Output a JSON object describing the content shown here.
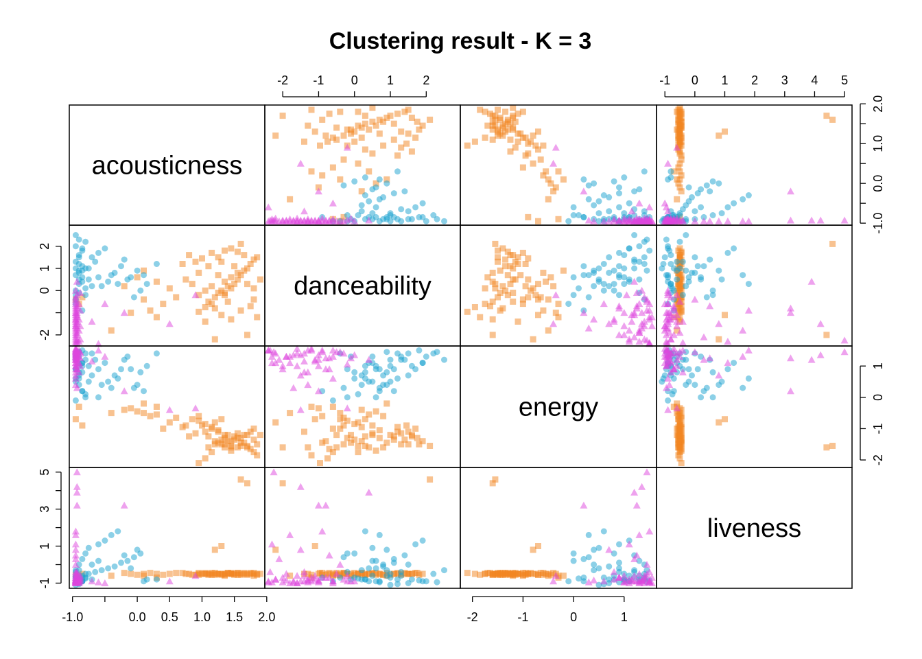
{
  "chart_data": {
    "type": "scatter",
    "title": "Clustering result - K = 3",
    "variables": [
      "acousticness",
      "danceability",
      "energy",
      "liveness"
    ],
    "cluster_colors": [
      "#F28522",
      "#1AA1CF",
      "#DE46DE"
    ],
    "cluster_markers": [
      "square",
      "circle",
      "triangle"
    ],
    "axes": {
      "acousticness": {
        "range": [
          -1.05,
          1.97
        ],
        "ticks": [
          -1.0,
          -0.5,
          0.0,
          0.5,
          1.0,
          1.5,
          2.0
        ],
        "tick_labels_bottom": [
          "-1.0",
          "",
          "0.0",
          "0.5",
          "1.0",
          "1.5",
          "2.0"
        ],
        "tick_labels_right": [
          "-1.0",
          "",
          "0.0",
          "",
          "1.0",
          "",
          "2.0"
        ]
      },
      "danceability": {
        "range": [
          -2.5,
          2.95
        ],
        "ticks": [
          -2,
          -1,
          0,
          1,
          2
        ],
        "tick_labels_top": [
          "-2",
          "-1",
          "0",
          "1",
          "2"
        ],
        "tick_labels_left": [
          "-2",
          "",
          "0",
          "1",
          "2"
        ]
      },
      "energy": {
        "range": [
          -2.24,
          1.64
        ],
        "ticks": [
          -2,
          -1,
          0,
          1
        ],
        "tick_labels_bottom": [
          "-2",
          "-1",
          "0",
          "1"
        ],
        "tick_labels_right": [
          "-2",
          "-1",
          "0",
          "1"
        ]
      },
      "liveness": {
        "range": [
          -1.28,
          5.25
        ],
        "ticks": [
          -1,
          0,
          1,
          2,
          3,
          4,
          5
        ],
        "tick_labels_top": [
          "-1",
          "0",
          "1",
          "2",
          "3",
          "4",
          "5"
        ],
        "tick_labels_left": [
          "-1",
          "",
          "1",
          "",
          "3",
          "",
          "5"
        ]
      }
    },
    "points": [
      [
        0.95,
        -0.96,
        -2.1,
        -0.45,
        0
      ],
      [
        1.05,
        -0.75,
        -1.95,
        -0.5,
        0
      ],
      [
        1.15,
        -0.6,
        -1.75,
        -0.5,
        0
      ],
      [
        1.1,
        -0.5,
        -1.6,
        -0.55,
        0
      ],
      [
        1.2,
        -0.3,
        -1.5,
        -0.45,
        0
      ],
      [
        1.25,
        -0.1,
        -1.45,
        -0.5,
        0
      ],
      [
        1.3,
        0.0,
        -1.35,
        -0.55,
        0
      ],
      [
        1.35,
        -0.2,
        -1.3,
        -0.5,
        0
      ],
      [
        1.4,
        0.2,
        -1.4,
        -0.45,
        0
      ],
      [
        1.45,
        0.1,
        -1.55,
        -0.5,
        0
      ],
      [
        1.5,
        0.3,
        -1.25,
        -0.55,
        0
      ],
      [
        1.55,
        0.5,
        -1.15,
        -0.45,
        0
      ],
      [
        1.6,
        0.7,
        -1.3,
        -0.5,
        0
      ],
      [
        1.65,
        0.9,
        -1.45,
        -0.45,
        0
      ],
      [
        1.7,
        1.0,
        -1.2,
        -0.55,
        0
      ],
      [
        1.75,
        1.2,
        -1.1,
        -0.5,
        0
      ],
      [
        1.8,
        1.4,
        -1.35,
        -0.45,
        0
      ],
      [
        1.85,
        1.5,
        -1.5,
        -0.5,
        0
      ],
      [
        1.55,
        0.8,
        -1.6,
        -0.55,
        0
      ],
      [
        1.45,
        0.6,
        -1.7,
        -0.45,
        0
      ],
      [
        1.35,
        0.4,
        -1.6,
        -0.5,
        0
      ],
      [
        1.25,
        0.7,
        -1.05,
        -0.5,
        0
      ],
      [
        1.15,
        0.2,
        -0.95,
        -0.55,
        0
      ],
      [
        1.05,
        0.0,
        -0.85,
        -0.45,
        0
      ],
      [
        0.95,
        -0.2,
        -0.75,
        -0.5,
        0
      ],
      [
        0.85,
        0.3,
        -0.7,
        -0.55,
        0
      ],
      [
        0.75,
        0.5,
        -0.9,
        -0.5,
        0
      ],
      [
        0.6,
        -0.3,
        -0.65,
        -0.45,
        0
      ],
      [
        0.5,
        0.1,
        -0.8,
        -0.5,
        0
      ],
      [
        0.4,
        -0.6,
        -1.0,
        -0.55,
        0
      ],
      [
        0.3,
        0.4,
        -0.55,
        -0.5,
        0
      ],
      [
        0.2,
        -0.9,
        -0.6,
        -0.45,
        0
      ],
      [
        0.1,
        -0.4,
        -0.5,
        -0.5,
        0
      ],
      [
        0.0,
        0.6,
        -0.45,
        -0.55,
        0
      ],
      [
        -0.1,
        -1.0,
        -0.35,
        -0.5,
        0
      ],
      [
        -0.2,
        0.2,
        -0.4,
        -0.45,
        0
      ],
      [
        1.1,
        1.1,
        -1.25,
        -0.5,
        0
      ],
      [
        1.2,
        -0.8,
        -1.4,
        -0.55,
        0
      ],
      [
        1.3,
        1.3,
        -1.5,
        -0.5,
        0
      ],
      [
        1.4,
        -0.5,
        -1.2,
        -0.45,
        0
      ],
      [
        1.5,
        1.1,
        -1.35,
        -0.5,
        0
      ],
      [
        1.6,
        -0.9,
        -1.45,
        -0.55,
        0
      ],
      [
        1.7,
        0.3,
        -1.55,
        -0.5,
        0
      ],
      [
        1.75,
        -0.7,
        -1.65,
        -0.45,
        0
      ],
      [
        1.8,
        0.1,
        -1.75,
        -0.5,
        0
      ],
      [
        1.85,
        -1.2,
        -1.85,
        -0.55,
        0
      ],
      [
        1.65,
        1.6,
        -1.2,
        -0.5,
        0
      ],
      [
        1.55,
        1.75,
        -1.3,
        -0.45,
        0
      ],
      [
        1.45,
        1.9,
        -1.4,
        -0.5,
        0
      ],
      [
        1.35,
        1.8,
        -1.5,
        -0.55,
        0
      ],
      [
        1.25,
        1.5,
        -1.1,
        -0.5,
        0
      ],
      [
        1.15,
        1.7,
        -1.0,
        -0.45,
        0
      ],
      [
        1.0,
        1.45,
        -0.9,
        -0.5,
        0
      ],
      [
        0.9,
        1.3,
        -1.15,
        -0.55,
        0
      ],
      [
        0.8,
        1.6,
        -1.25,
        -0.5,
        0
      ],
      [
        0.7,
        1.2,
        -0.95,
        -0.45,
        0
      ],
      [
        1.7,
        -2.0,
        -1.6,
        4.4,
        0
      ],
      [
        1.6,
        2.1,
        -1.55,
        4.6,
        0
      ],
      [
        1.3,
        -1.1,
        -0.7,
        1.0,
        0
      ],
      [
        1.2,
        -2.2,
        -0.8,
        0.8,
        0
      ],
      [
        1.8,
        -0.4,
        -1.0,
        -0.6,
        0
      ],
      [
        1.9,
        0.5,
        -1.2,
        -0.5,
        0
      ],
      [
        0.3,
        -1.2,
        -0.3,
        -0.7,
        0
      ],
      [
        0.1,
        0.9,
        -0.2,
        -0.6,
        0
      ],
      [
        1.05,
        -1.4,
        -1.1,
        -0.5,
        0
      ],
      [
        0.95,
        0.8,
        -0.6,
        -0.55,
        0
      ],
      [
        -0.4,
        -1.8,
        -0.5,
        -0.6,
        0
      ],
      [
        1.45,
        -1.3,
        -1.6,
        -0.5,
        0
      ],
      [
        1.35,
        -0.1,
        -1.2,
        -0.6,
        0
      ],
      [
        -0.85,
        -0.3,
        -0.9,
        -0.5,
        0
      ],
      [
        -0.95,
        -0.4,
        -0.7,
        -0.55,
        0
      ],
      [
        -0.9,
        -0.6,
        -0.3,
        -0.6,
        0
      ],
      [
        -0.95,
        0.0,
        0.6,
        -0.7,
        1
      ],
      [
        -0.9,
        0.3,
        0.8,
        -0.8,
        1
      ],
      [
        -0.85,
        0.6,
        1.0,
        -0.9,
        1
      ],
      [
        -0.8,
        1.0,
        1.2,
        -0.7,
        1
      ],
      [
        -0.95,
        1.3,
        1.3,
        -0.6,
        1
      ],
      [
        -0.9,
        1.6,
        1.0,
        -0.8,
        1
      ],
      [
        -0.85,
        1.9,
        1.1,
        -0.9,
        1
      ],
      [
        -0.8,
        2.2,
        1.4,
        -0.5,
        1
      ],
      [
        -0.95,
        2.5,
        1.2,
        -0.3,
        1
      ],
      [
        -0.9,
        0.8,
        0.4,
        0.0,
        1
      ],
      [
        -0.85,
        1.1,
        0.2,
        0.3,
        1
      ],
      [
        -0.8,
        -0.2,
        0.0,
        0.6,
        1
      ],
      [
        -0.75,
        0.5,
        0.5,
        0.9,
        1
      ],
      [
        -0.7,
        0.2,
        0.7,
        -0.8,
        1
      ],
      [
        -0.6,
        1.7,
        0.9,
        1.1,
        1
      ],
      [
        -0.5,
        1.9,
        1.1,
        1.3,
        1
      ],
      [
        -0.4,
        0.7,
        0.3,
        1.6,
        1
      ],
      [
        -0.3,
        0.3,
        0.6,
        1.8,
        1
      ],
      [
        -0.2,
        1.4,
        1.2,
        0.5,
        1
      ],
      [
        -0.1,
        0.6,
        0.9,
        -0.2,
        1
      ],
      [
        0.0,
        0.9,
        0.4,
        0.8,
        1
      ],
      [
        0.1,
        0.7,
        0.2,
        -0.9,
        1
      ],
      [
        -0.95,
        -0.4,
        1.4,
        -0.7,
        1
      ],
      [
        -0.9,
        -0.1,
        1.3,
        -0.8,
        1
      ],
      [
        -0.85,
        0.4,
        1.1,
        -0.9,
        1
      ],
      [
        -0.95,
        0.7,
        0.9,
        -0.95,
        1
      ],
      [
        -0.9,
        1.5,
        0.7,
        -1.0,
        1
      ],
      [
        -0.85,
        1.8,
        1.5,
        -0.85,
        1
      ],
      [
        -0.8,
        0.1,
        0.1,
        -0.75,
        1
      ],
      [
        -0.95,
        -0.6,
        -0.1,
        -0.9,
        1
      ],
      [
        -0.9,
        1.2,
        0.6,
        -1.05,
        1
      ],
      [
        -0.85,
        0.9,
        0.8,
        -0.6,
        1
      ],
      [
        -0.75,
        1.0,
        1.0,
        -0.5,
        1
      ],
      [
        -0.65,
        1.3,
        1.2,
        -0.4,
        1
      ],
      [
        -0.55,
        0.2,
        0.4,
        -0.3,
        1
      ],
      [
        -0.45,
        0.4,
        0.5,
        -0.2,
        1
      ],
      [
        -0.35,
        0.8,
        0.7,
        -0.1,
        1
      ],
      [
        -0.25,
        1.1,
        0.9,
        0.1,
        1
      ],
      [
        -0.15,
        0.5,
        1.3,
        0.2,
        1
      ],
      [
        -0.05,
        -0.3,
        0.3,
        0.4,
        1
      ],
      [
        0.05,
        0.0,
        0.8,
        0.6,
        1
      ],
      [
        0.15,
        0.3,
        1.0,
        -0.8,
        1
      ],
      [
        -0.95,
        2.0,
        1.3,
        -0.9,
        1
      ],
      [
        -0.9,
        2.3,
        1.45,
        -0.95,
        1
      ],
      [
        -0.85,
        -0.9,
        0.2,
        -0.7,
        1
      ],
      [
        -0.95,
        1.0,
        0.5,
        -1.1,
        1
      ],
      [
        -0.9,
        0.5,
        1.1,
        -0.6,
        1
      ],
      [
        -0.7,
        1.5,
        1.4,
        0.0,
        1
      ],
      [
        -0.6,
        0.6,
        0.0,
        0.2,
        1
      ],
      [
        0.3,
        1.2,
        1.4,
        -0.8,
        1
      ],
      [
        -0.95,
        -0.2,
        0.9,
        -0.4,
        1
      ],
      [
        -0.9,
        0.9,
        1.45,
        -0.3,
        1
      ],
      [
        -0.95,
        -1.0,
        1.2,
        -0.9,
        2
      ],
      [
        -0.95,
        -1.3,
        1.5,
        -0.95,
        2
      ],
      [
        -0.95,
        -1.6,
        1.4,
        -1.0,
        2
      ],
      [
        -0.95,
        -1.9,
        1.3,
        -0.85,
        2
      ],
      [
        -0.95,
        -2.2,
        1.1,
        -0.8,
        2
      ],
      [
        -0.95,
        -2.4,
        1.5,
        -0.9,
        2
      ],
      [
        -0.95,
        -0.8,
        0.9,
        -0.7,
        2
      ],
      [
        -0.95,
        -1.1,
        1.2,
        -0.6,
        2
      ],
      [
        -0.95,
        -0.5,
        1.45,
        -0.5,
        2
      ],
      [
        -0.95,
        -1.4,
        0.8,
        -0.4,
        2
      ],
      [
        -0.95,
        -1.7,
        1.35,
        -0.9,
        2
      ],
      [
        -0.95,
        -2.0,
        1.0,
        -0.95,
        2
      ],
      [
        -0.95,
        -0.3,
        1.4,
        -0.8,
        2
      ],
      [
        -0.95,
        -1.2,
        1.55,
        -0.7,
        2
      ],
      [
        -0.95,
        -0.7,
        1.25,
        0.5,
        2
      ],
      [
        -0.95,
        -1.5,
        0.7,
        0.8,
        2
      ],
      [
        -0.95,
        -2.3,
        1.1,
        1.1,
        2
      ],
      [
        -0.95,
        -1.8,
        1.3,
        1.6,
        2
      ],
      [
        -0.95,
        -0.9,
        1.5,
        1.8,
        2
      ],
      [
        -0.95,
        -0.6,
        0.6,
        -0.9,
        2
      ],
      [
        -0.95,
        -1.0,
        1.0,
        -0.95,
        2
      ],
      [
        -0.95,
        -1.6,
        1.55,
        -1.0,
        2
      ],
      [
        -0.95,
        0.0,
        1.35,
        -0.9,
        2
      ],
      [
        -0.95,
        -0.4,
        1.45,
        0.0,
        2
      ],
      [
        -0.95,
        -2.1,
        1.2,
        0.3,
        2
      ],
      [
        -0.95,
        -1.3,
        0.4,
        -0.85,
        2
      ],
      [
        -0.93,
        -0.7,
        0.9,
        -0.7,
        2
      ],
      [
        -0.93,
        -1.4,
        1.4,
        -0.6,
        2
      ],
      [
        -0.93,
        -1.9,
        1.3,
        -0.5,
        2
      ],
      [
        -0.93,
        -2.35,
        1.5,
        -0.4,
        2
      ],
      [
        -0.93,
        -1.1,
        1.15,
        -0.8,
        2
      ],
      [
        -0.93,
        -0.2,
        1.05,
        -0.9,
        2
      ],
      [
        -0.93,
        -0.8,
        1.25,
        3.2,
        2
      ],
      [
        -0.93,
        -1.5,
        1.35,
        4.2,
        2
      ],
      [
        -0.93,
        -2.25,
        1.45,
        5.0,
        2
      ],
      [
        -0.93,
        0.4,
        1.2,
        3.9,
        2
      ],
      [
        -0.93,
        -1.7,
        0.3,
        -0.95,
        2
      ],
      [
        -0.93,
        -1.2,
        1.5,
        -0.9,
        2
      ],
      [
        -0.93,
        -2.0,
        0.9,
        -0.7,
        2
      ],
      [
        -0.93,
        -1.0,
        1.35,
        -0.85,
        2
      ],
      [
        -0.9,
        -1.8,
        1.1,
        -1.0,
        2
      ],
      [
        -0.9,
        -0.6,
        1.5,
        -0.9,
        2
      ],
      [
        -0.9,
        -1.3,
        0.8,
        -0.8,
        2
      ],
      [
        -0.9,
        -2.3,
        1.3,
        -0.95,
        2
      ],
      [
        -0.88,
        -0.9,
        1.45,
        -0.7,
        2
      ],
      [
        -0.88,
        -1.6,
        1.0,
        -0.6,
        2
      ],
      [
        -0.88,
        -2.2,
        1.4,
        -0.8,
        2
      ],
      [
        -0.88,
        -0.1,
        1.25,
        -0.9,
        2
      ],
      [
        -0.2,
        -1.0,
        0.2,
        3.2,
        2
      ],
      [
        0.5,
        -1.5,
        -0.4,
        -0.9,
        2
      ],
      [
        0.9,
        -0.2,
        -0.35,
        -0.6,
        2
      ],
      [
        -0.7,
        -1.4,
        1.15,
        -0.9,
        2
      ],
      [
        -0.6,
        -2.4,
        1.5,
        -0.95,
        2
      ],
      [
        -0.5,
        -0.6,
        1.3,
        -1.0,
        2
      ]
    ]
  }
}
